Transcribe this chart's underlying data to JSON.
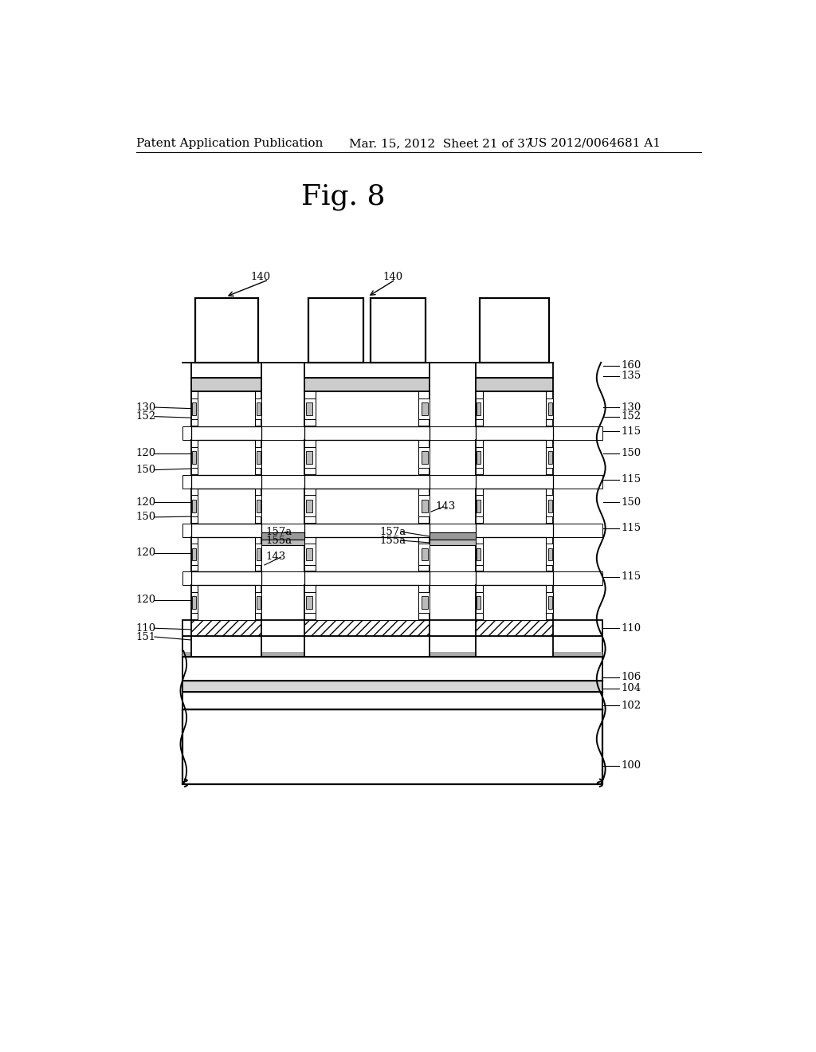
{
  "title": "Fig. 8",
  "header_left": "Patent Application Publication",
  "header_mid": "Mar. 15, 2012  Sheet 21 of 37",
  "header_right": "US 2012/0064681 A1",
  "bg_color": "#ffffff",
  "line_color": "#000000",
  "fig_title_fontsize": 26,
  "header_fontsize": 11,
  "label_fontsize": 9.5
}
